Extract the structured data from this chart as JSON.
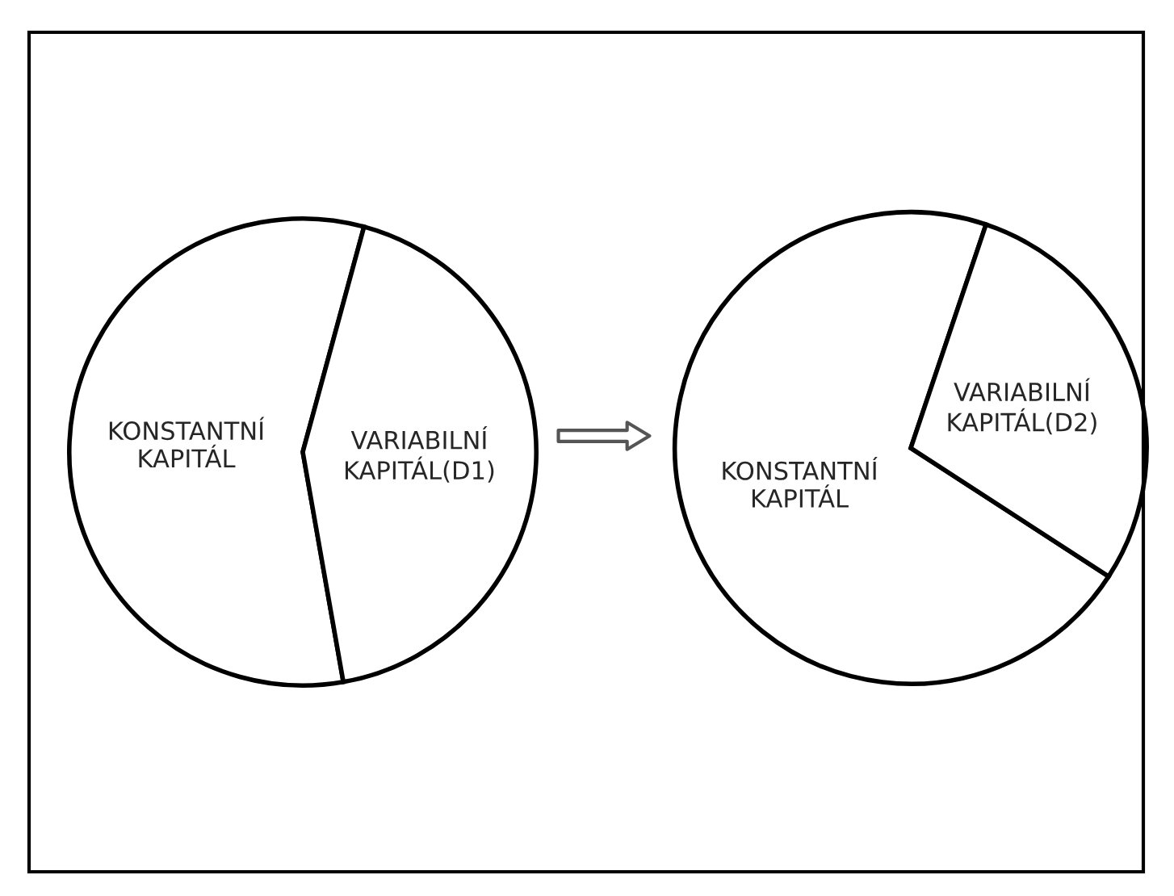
{
  "chart_data": [
    {
      "type": "pie",
      "categories": [
        "KONSTANTNÍ\nKAPITÁL",
        "VARIABILNÍ\nKAPITÁL(D1)"
      ],
      "values": [
        57,
        43
      ],
      "colors": [
        "#ffffff",
        "#ffffff"
      ]
    },
    {
      "type": "pie",
      "categories": [
        "KONSTANTNÍ\nKAPITÁL",
        "VARIABILNÍ\nKAPITÁL(D2)"
      ],
      "values": [
        71,
        29
      ],
      "colors": [
        "#ffffff",
        "#ffffff"
      ]
    }
  ]
}
